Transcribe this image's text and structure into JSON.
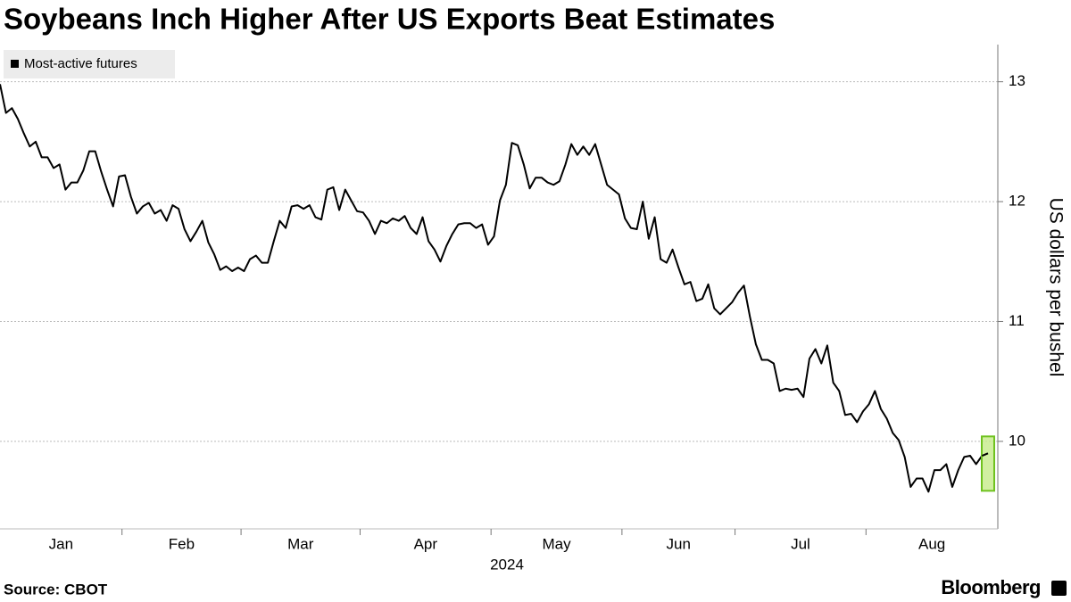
{
  "chart_data": {
    "type": "line",
    "title": "Soybeans Inch Higher After US Exports Beat Estimates",
    "ylabel": "US dollars per bushel",
    "xlabel": "2024",
    "source": "Source: CBOT",
    "brand": "Bloomberg",
    "categories": [
      "Jan",
      null,
      null,
      null,
      null,
      null,
      null,
      null,
      null,
      null,
      null,
      null,
      null,
      null,
      null,
      null,
      null,
      null,
      null,
      null,
      null,
      "Feb",
      null,
      null,
      null,
      null,
      null,
      null,
      null,
      null,
      null,
      null,
      null,
      null,
      null,
      null,
      null,
      null,
      null,
      null,
      null,
      "Mar",
      null,
      null,
      null,
      null,
      null,
      null,
      null,
      null,
      null,
      null,
      null,
      null,
      null,
      null,
      null,
      null,
      null,
      null,
      null,
      "Apr",
      null,
      null,
      null,
      null,
      null,
      null,
      null,
      null,
      null,
      null,
      null,
      null,
      null,
      null,
      null,
      null,
      null,
      null,
      null,
      null,
      null,
      "May",
      null,
      null,
      null,
      null,
      null,
      null,
      null,
      null,
      null,
      null,
      null,
      null,
      null,
      null,
      null,
      null,
      null,
      null,
      null,
      null,
      null,
      "Jun",
      null,
      null,
      null,
      null,
      null,
      null,
      null,
      null,
      null,
      null,
      null,
      null,
      null,
      null,
      null,
      null,
      null,
      null,
      "Jul",
      null,
      null,
      null,
      null,
      null,
      null,
      null,
      null,
      null,
      null,
      null,
      null,
      null,
      null,
      null,
      null,
      null,
      null,
      null,
      null,
      null,
      "Aug",
      null,
      null,
      null,
      null,
      null,
      null,
      null,
      null,
      null,
      null,
      null,
      null,
      null,
      null,
      null,
      null,
      null,
      null,
      null,
      null
    ],
    "series": [
      {
        "name": "Most-active futures",
        "color": "#000000",
        "values": [
          12.98,
          12.74,
          12.78,
          12.69,
          12.57,
          12.46,
          12.5,
          12.37,
          12.37,
          12.28,
          12.31,
          12.1,
          12.16,
          12.16,
          12.26,
          12.42,
          12.42,
          12.25,
          12.1,
          11.96,
          12.21,
          12.22,
          12.04,
          11.9,
          11.96,
          11.99,
          11.9,
          11.93,
          11.84,
          11.97,
          11.94,
          11.77,
          11.67,
          11.75,
          11.84,
          11.66,
          11.56,
          11.43,
          11.46,
          11.42,
          11.45,
          11.42,
          11.52,
          11.55,
          11.49,
          11.49,
          11.67,
          11.84,
          11.78,
          11.96,
          11.97,
          11.94,
          11.97,
          11.87,
          11.85,
          12.1,
          12.12,
          11.93,
          12.1,
          12.01,
          11.92,
          11.91,
          11.84,
          11.73,
          11.84,
          11.82,
          11.86,
          11.84,
          11.88,
          11.78,
          11.73,
          11.87,
          11.67,
          11.6,
          11.5,
          11.63,
          11.73,
          11.81,
          11.82,
          11.82,
          11.78,
          11.81,
          11.64,
          11.71,
          12.01,
          12.14,
          12.49,
          12.47,
          12.31,
          12.11,
          12.2,
          12.2,
          12.16,
          12.14,
          12.17,
          12.31,
          12.48,
          12.39,
          12.46,
          12.39,
          12.48,
          12.31,
          12.14,
          12.1,
          12.06,
          11.86,
          11.78,
          11.77,
          12.0,
          11.69,
          11.87,
          11.52,
          11.49,
          11.6,
          11.45,
          11.31,
          11.33,
          11.17,
          11.19,
          11.31,
          11.11,
          11.06,
          11.11,
          11.16,
          11.24,
          11.3,
          11.04,
          10.81,
          10.68,
          10.68,
          10.65,
          10.42,
          10.44,
          10.43,
          10.44,
          10.37,
          10.69,
          10.77,
          10.65,
          10.8,
          10.49,
          10.42,
          10.22,
          10.23,
          10.16,
          10.25,
          10.31,
          10.42,
          10.27,
          10.19,
          10.07,
          10.01,
          9.87,
          9.62,
          9.69,
          9.69,
          9.58,
          9.76,
          9.76,
          9.81,
          9.62,
          9.76,
          9.87,
          9.88,
          9.81,
          9.88,
          9.9
        ]
      }
    ],
    "ylim": [
      9.27,
      13.31
    ],
    "yticks": [
      10,
      11,
      12,
      13
    ],
    "grid": true,
    "legend": "top-left"
  }
}
